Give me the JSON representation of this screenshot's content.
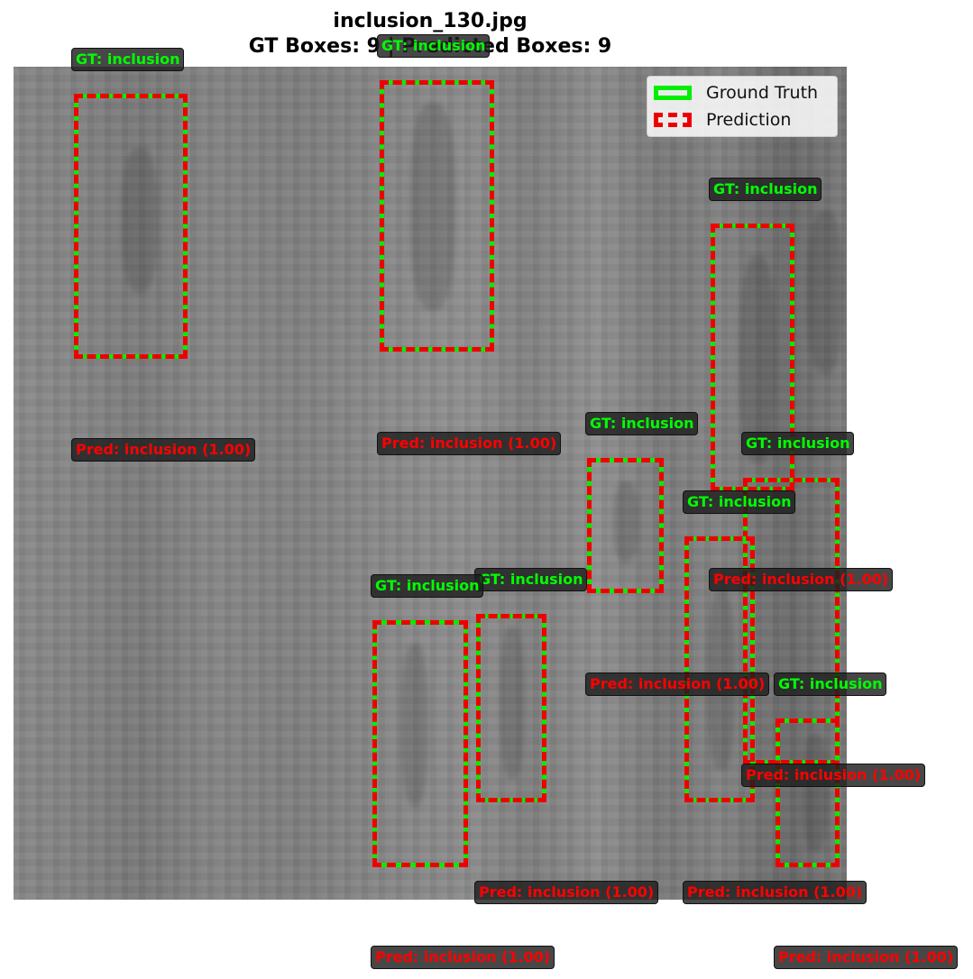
{
  "title": {
    "filename": "inclusion_130.jpg",
    "subtitle": "GT Boxes: 9 | Predicted Boxes: 9"
  },
  "legend": {
    "gt_label": "Ground Truth",
    "pred_label": "Prediction"
  },
  "colors": {
    "ground_truth": "#00ee00",
    "prediction": "#ee0000"
  },
  "labels": {
    "gt": [
      "GT: inclusion",
      "GT: inclusion",
      "GT: inclusion",
      "GT: inclusion",
      "GT: inclusion",
      "GT: inclusion",
      "GT: inclusion",
      "GT: inclusion",
      "GT: inclusion"
    ],
    "pred": [
      "Pred: inclusion (1.00)",
      "Pred: inclusion (1.00)",
      "Pred: inclusion (1.00)",
      "Pred: inclusion (1.00)",
      "Pred: inclusion (1.00)",
      "Pred: inclusion (1.00)",
      "Pred: inclusion (1.00)",
      "Pred: inclusion (1.00)",
      "Pred: inclusion (1.00)"
    ]
  }
}
